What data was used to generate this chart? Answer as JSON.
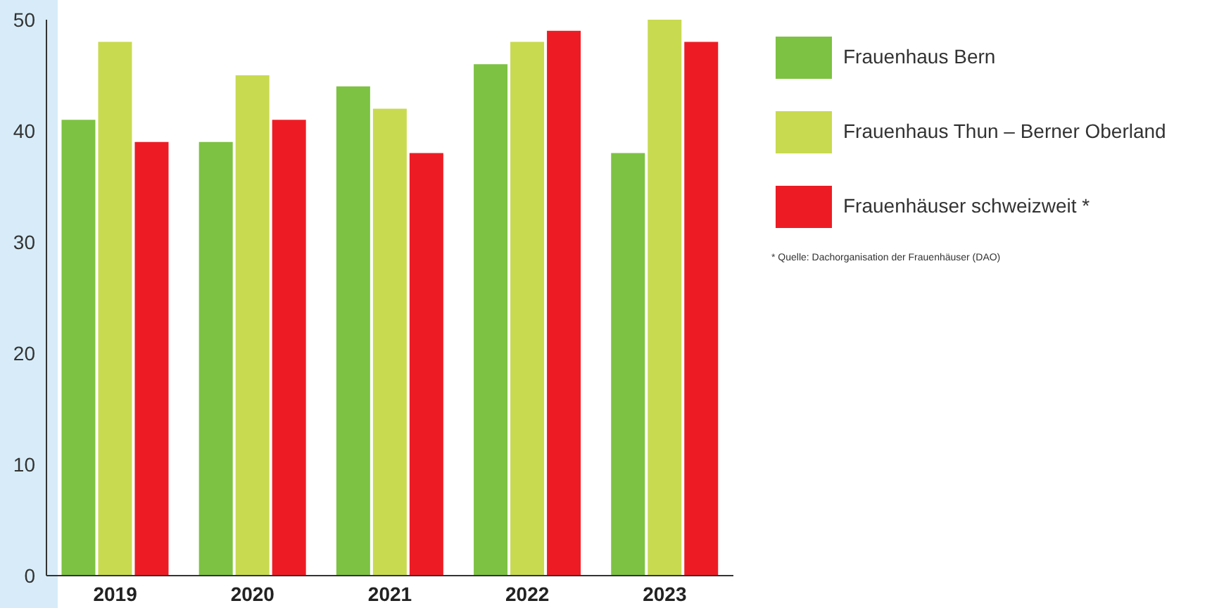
{
  "chart_data": {
    "type": "bar",
    "categories": [
      "2019",
      "2020",
      "2021",
      "2022",
      "2023"
    ],
    "series": [
      {
        "name": "Frauenhaus Bern",
        "color": "#7dc242",
        "values": [
          41,
          39,
          44,
          46,
          38
        ]
      },
      {
        "name": "Frauenhaus Thun – Berner Oberland",
        "color": "#c8da50",
        "values": [
          48,
          45,
          42,
          48,
          50
        ]
      },
      {
        "name": "Frauenhäuser schweizweit *",
        "color": "#ed1c24",
        "values": [
          39,
          41,
          38,
          49,
          48
        ]
      }
    ],
    "ylim": [
      0,
      50
    ],
    "yticks": [
      0,
      10,
      20,
      30,
      40,
      50
    ],
    "grid": false,
    "legend": "right",
    "annotations": [
      "* Quelle: Dachorganisation der Frauenhäuser (DAO)"
    ]
  }
}
